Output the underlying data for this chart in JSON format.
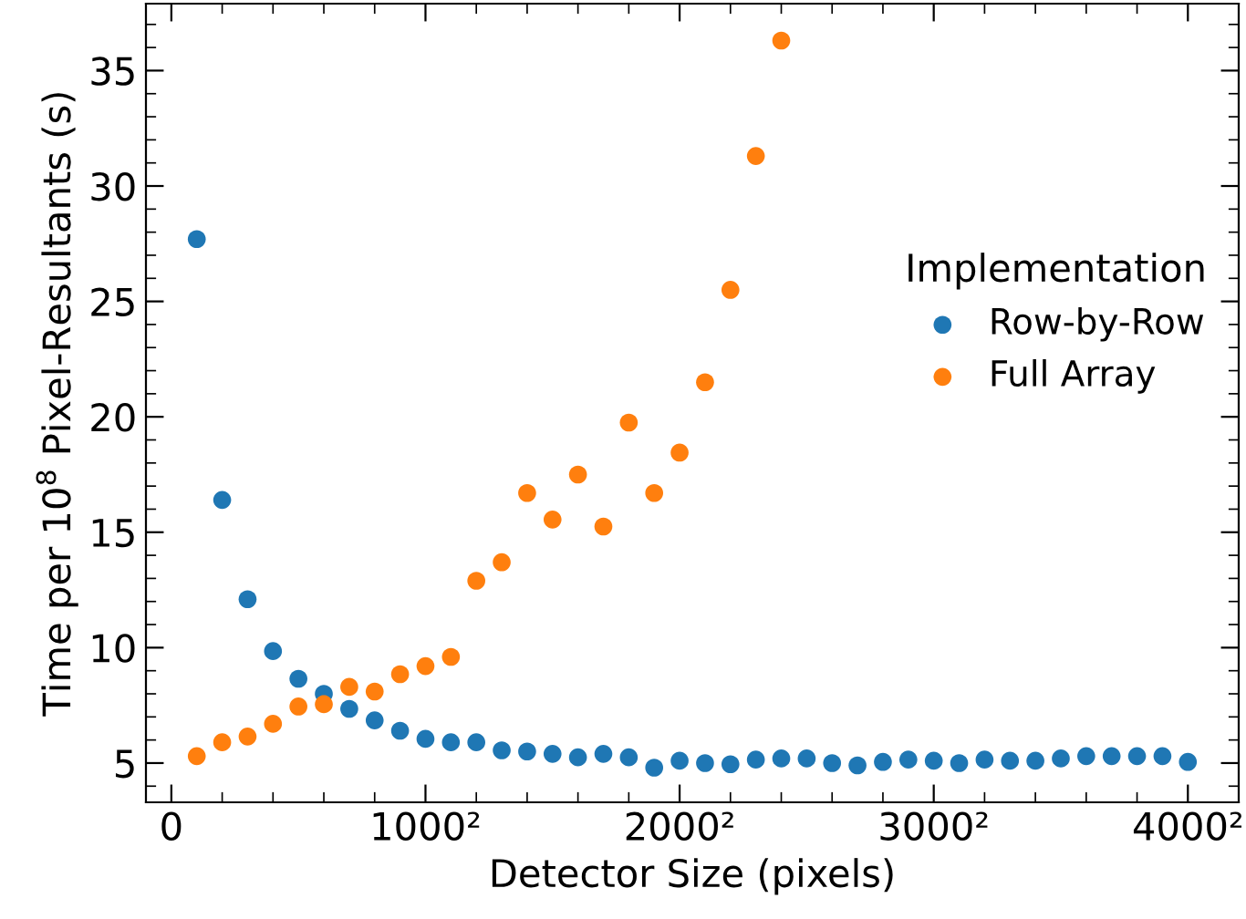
{
  "chart_data": {
    "type": "scatter",
    "xlabel": "Detector Size (pixels)",
    "ylabel": "Time per 10$^{8}$ Pixel-Resultants (s)",
    "legend_title": "Implementation",
    "legend": "right",
    "marker": "circle",
    "grid": false,
    "xlim": [
      -100,
      4200
    ],
    "ylim": [
      3.3,
      37.9
    ],
    "xticks": [
      0,
      {
        "value": 1000,
        "label": "1000²"
      },
      {
        "value": 2000,
        "label": "2000²"
      },
      {
        "value": 3000,
        "label": "3000²"
      },
      {
        "value": 4000,
        "label": "4000²"
      }
    ],
    "yticks": [
      5,
      10,
      15,
      20,
      25,
      30,
      35
    ],
    "series": [
      {
        "name": "Row-by-Row",
        "color": "#1f77b4",
        "x": [
          100,
          200,
          300,
          400,
          500,
          600,
          700,
          800,
          900,
          1000,
          1100,
          1200,
          1300,
          1400,
          1500,
          1600,
          1700,
          1800,
          1900,
          2000,
          2100,
          2200,
          2300,
          2400,
          2500,
          2600,
          2700,
          2800,
          2900,
          3000,
          3100,
          3200,
          3300,
          3400,
          3500,
          3600,
          3700,
          3800,
          3900,
          4000
        ],
        "values": [
          27.7,
          16.4,
          12.1,
          9.85,
          8.65,
          8.0,
          7.35,
          6.85,
          6.4,
          6.05,
          5.9,
          5.9,
          5.55,
          5.5,
          5.4,
          5.25,
          5.4,
          5.25,
          4.8,
          5.1,
          5.0,
          4.95,
          5.15,
          5.2,
          5.2,
          5.0,
          4.9,
          5.05,
          5.15,
          5.1,
          5.0,
          5.15,
          5.1,
          5.1,
          5.2,
          5.3,
          5.3,
          5.3,
          5.3,
          5.05
        ]
      },
      {
        "name": "Full Array",
        "color": "#ff7f0e",
        "x": [
          100,
          200,
          300,
          400,
          500,
          600,
          700,
          800,
          900,
          1000,
          1100,
          1200,
          1300,
          1400,
          1500,
          1600,
          1700,
          1800,
          1900,
          2000,
          2100,
          2200,
          2300,
          2400
        ],
        "values": [
          5.3,
          5.9,
          6.15,
          6.7,
          7.45,
          7.55,
          8.3,
          8.1,
          8.85,
          9.2,
          9.6,
          12.9,
          13.7,
          16.7,
          15.55,
          17.5,
          15.25,
          19.75,
          16.7,
          18.45,
          21.5,
          25.5,
          31.3,
          36.3
        ]
      }
    ]
  }
}
